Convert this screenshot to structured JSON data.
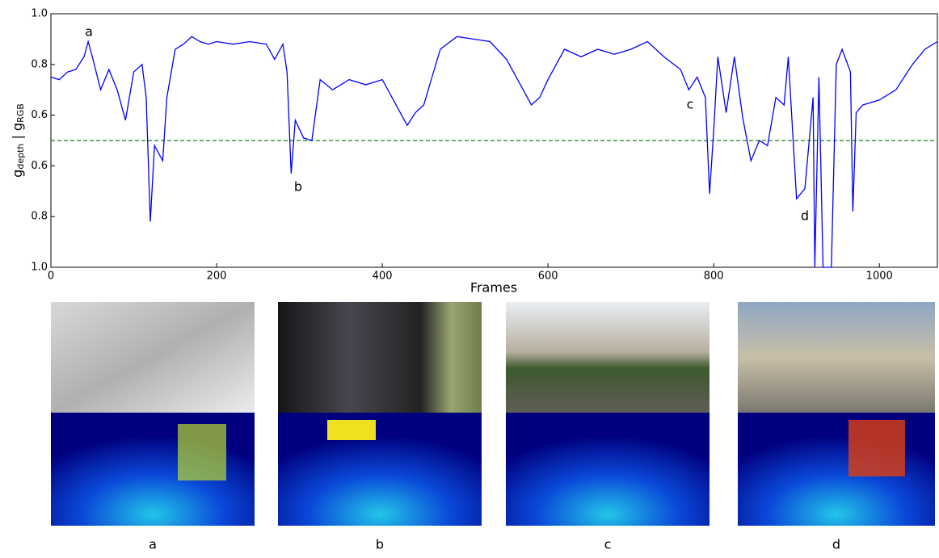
{
  "chart_data": {
    "type": "line",
    "ylabel_parts": [
      "g",
      "depth",
      " | g",
      "RGB"
    ],
    "xlabel": "Frames",
    "xlim": [
      0,
      1070
    ],
    "xticks": [
      0,
      200,
      400,
      600,
      800,
      1000
    ],
    "ylim": [
      0,
      1
    ],
    "yticks": [
      {
        "value": 1,
        "label": "1.0"
      },
      0.8,
      0.6,
      {
        "value": 0.4,
        "label": "0.6"
      },
      {
        "value": 0.2,
        "label": "0.8"
      },
      {
        "value": 0,
        "label": "1.0"
      }
    ],
    "threshold": 0.5,
    "threshold_color": "#3a9a3a",
    "color": "#0000ff",
    "x": [
      0,
      10,
      20,
      30,
      40,
      45,
      50,
      60,
      70,
      80,
      90,
      100,
      110,
      115,
      120,
      125,
      135,
      140,
      150,
      160,
      170,
      180,
      190,
      200,
      220,
      240,
      260,
      270,
      280,
      285,
      290,
      295,
      305,
      315,
      325,
      340,
      360,
      380,
      400,
      420,
      430,
      440,
      450,
      460,
      470,
      490,
      510,
      530,
      550,
      570,
      580,
      590,
      600,
      620,
      640,
      660,
      680,
      700,
      720,
      740,
      760,
      770,
      780,
      790,
      795,
      800,
      805,
      815,
      825,
      835,
      845,
      855,
      865,
      875,
      885,
      890,
      900,
      910,
      920,
      922,
      927,
      932,
      942,
      948,
      955,
      965,
      968,
      972,
      980,
      1000,
      1020,
      1040,
      1055,
      1070
    ],
    "values": [
      0.75,
      0.74,
      0.77,
      0.78,
      0.83,
      0.89,
      0.83,
      0.7,
      0.78,
      0.7,
      0.58,
      0.77,
      0.8,
      0.67,
      0.18,
      0.48,
      0.42,
      0.67,
      0.86,
      0.88,
      0.91,
      0.89,
      0.88,
      0.89,
      0.88,
      0.89,
      0.88,
      0.82,
      0.88,
      0.77,
      0.37,
      0.58,
      0.51,
      0.5,
      0.74,
      0.7,
      0.74,
      0.72,
      0.74,
      0.62,
      0.56,
      0.61,
      0.64,
      0.75,
      0.86,
      0.91,
      0.9,
      0.89,
      0.82,
      0.7,
      0.64,
      0.67,
      0.74,
      0.86,
      0.83,
      0.86,
      0.84,
      0.86,
      0.89,
      0.83,
      0.78,
      0.7,
      0.75,
      0.67,
      0.29,
      0.54,
      0.83,
      0.61,
      0.83,
      0.59,
      0.42,
      0.5,
      0.48,
      0.67,
      0.64,
      0.83,
      0.27,
      0.31,
      0.67,
      0.0,
      0.75,
      0.0,
      0.0,
      0.8,
      0.86,
      0.77,
      0.22,
      0.61,
      0.64,
      0.66,
      0.7,
      0.8,
      0.86,
      0.89
    ],
    "annotations": [
      "a",
      "b",
      "c",
      "d"
    ]
  },
  "images": [
    {
      "caption": "a"
    },
    {
      "caption": "b"
    },
    {
      "caption": "c"
    },
    {
      "caption": "d"
    }
  ]
}
